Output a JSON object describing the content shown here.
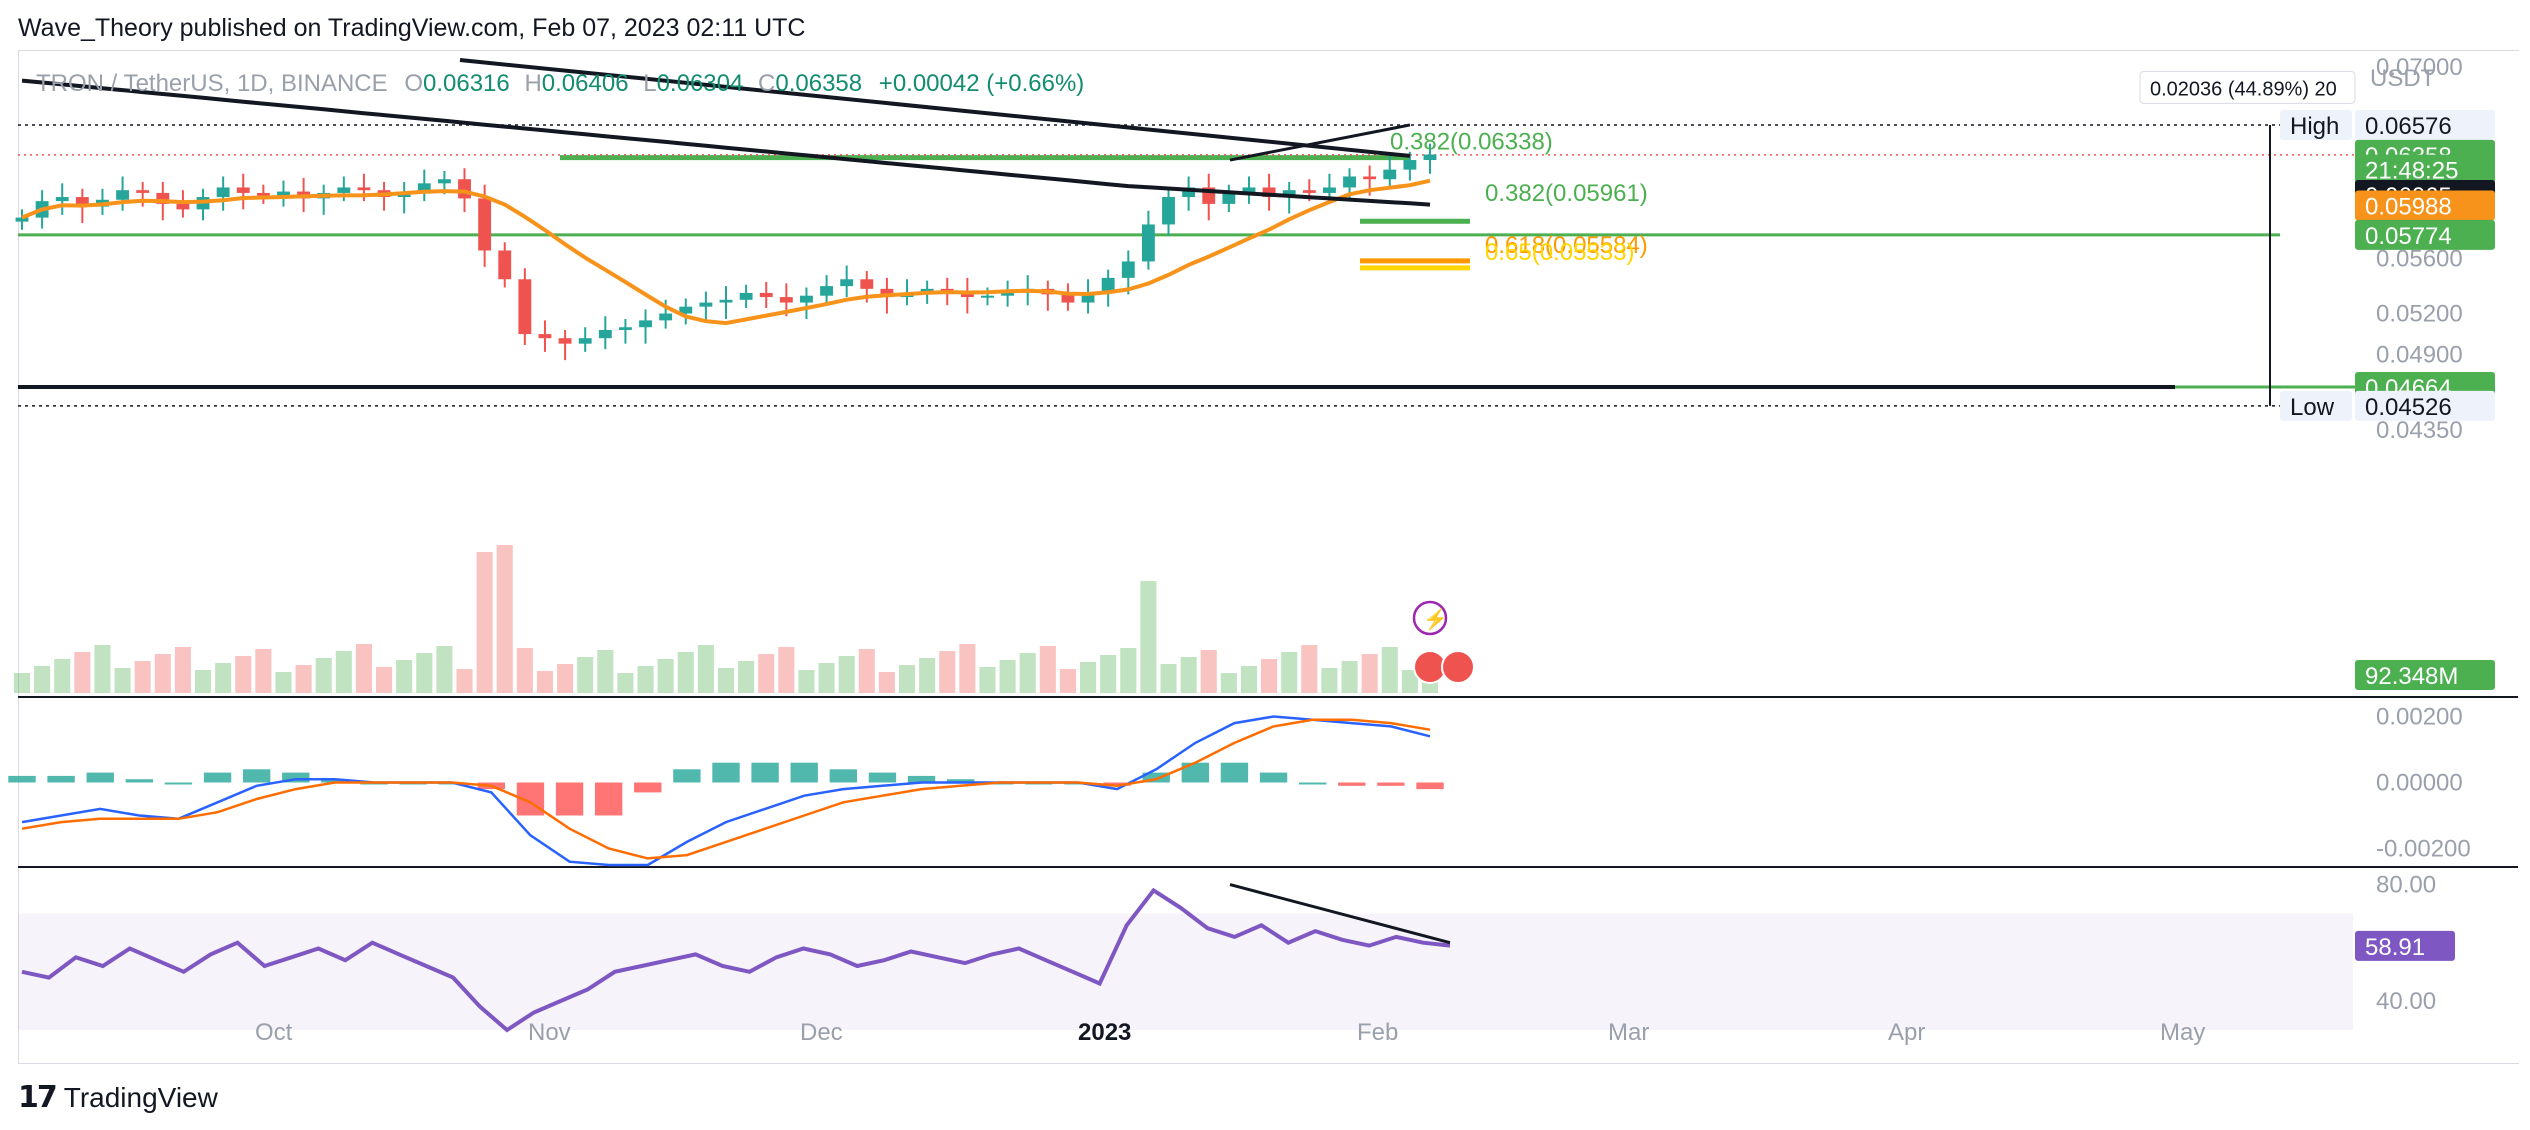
{
  "header": {
    "published": "Wave_Theory published on TradingView.com, Feb 07, 2023 02:11 UTC"
  },
  "legend": {
    "symbol": "TRON / TetherUS, 1D, BINANCE",
    "o_label": "O",
    "o_value": "0.06316",
    "h_label": "H",
    "h_value": "0.06406",
    "l_label": "L",
    "l_value": "0.06304",
    "c_label": "C",
    "c_value": "0.06358",
    "change": "+0.00042 (+0.66%)"
  },
  "footer": {
    "brand": "TradingView"
  },
  "colors": {
    "up": "#26a69a",
    "down": "#ef5350",
    "ema": "#f7931a",
    "ma200": "#131722",
    "fib_green": "#4caf50",
    "fib_orange": "#ff9800",
    "fib_yellow": "#ffd600",
    "macd": "#2962ff",
    "signal": "#ff6d00",
    "rsi": "#7e57c2"
  },
  "chart_data": [
    {
      "type": "candlestick",
      "title": "TRON / TetherUS, 1D, BINANCE",
      "x_ticks": [
        "Oct",
        "Nov",
        "Dec",
        "2023",
        "Feb",
        "Mar",
        "Apr",
        "May"
      ],
      "y_unit": "USDT",
      "y_ticks": [
        "0.07000",
        "0.06576",
        "0.06358",
        "0.05600",
        "0.05200",
        "0.04900",
        "0.04350"
      ],
      "ylim": [
        0.0435,
        0.0705
      ],
      "series_close_approx": [
        0.059,
        0.0602,
        0.0605,
        0.0598,
        0.0603,
        0.061,
        0.0608,
        0.06,
        0.0596,
        0.0605,
        0.0612,
        0.0608,
        0.0606,
        0.0609,
        0.0604,
        0.0608,
        0.0612,
        0.061,
        0.0605,
        0.0608,
        0.0615,
        0.0618,
        0.0604,
        0.0566,
        0.0545,
        0.0505,
        0.0502,
        0.0498,
        0.0502,
        0.0508,
        0.051,
        0.0515,
        0.052,
        0.0525,
        0.0528,
        0.053,
        0.0535,
        0.0532,
        0.0528,
        0.0533,
        0.054,
        0.0545,
        0.0538,
        0.0532,
        0.0535,
        0.0538,
        0.0536,
        0.0532,
        0.0533,
        0.0536,
        0.0538,
        0.0534,
        0.0528,
        0.0535,
        0.0546,
        0.0558,
        0.0585,
        0.0605,
        0.0612,
        0.06,
        0.0608,
        0.0612,
        0.0605,
        0.061,
        0.0608,
        0.0612,
        0.062,
        0.0618,
        0.0625,
        0.0632,
        0.0636
      ],
      "price_tags": [
        {
          "label": "High",
          "value": "0.06576"
        },
        {
          "label": "",
          "value": "0.06358"
        },
        {
          "label": "",
          "value": "21:48:25"
        },
        {
          "label": "",
          "value": "0.06065"
        },
        {
          "label": "",
          "value": "0.05988"
        },
        {
          "label": "",
          "value": "0.05774"
        },
        {
          "label": "",
          "value": "0.04664"
        },
        {
          "label": "Low",
          "value": "0.04526"
        },
        {
          "label": "",
          "value": "92.348M"
        }
      ],
      "annotations": [
        {
          "text": "0.382(0.06338)",
          "y": 0.06338
        },
        {
          "text": "0.382(0.05961)",
          "y": 0.05961
        },
        {
          "text": "0.618(0.05584)",
          "y": 0.05584
        },
        {
          "text": "0.65(0.05533)",
          "y": 0.05533
        }
      ],
      "measure_label": "0.02036 (44.89%) 20",
      "horizontal_levels": [
        0.06576,
        0.06338,
        0.05774,
        0.04664,
        0.04526
      ]
    },
    {
      "type": "line",
      "title": "MACD",
      "y_ticks": [
        "0.00200",
        "0.00000",
        "-0.00200"
      ],
      "ylim": [
        -0.0025,
        0.0025
      ],
      "series": [
        {
          "values": [
            -0.0012,
            -0.001,
            -0.0008,
            -0.001,
            -0.0011,
            -0.0006,
            -0.0001,
            0.0001,
            0.0001,
            0.0,
            0.0,
            0.0,
            -0.0003,
            -0.0016,
            -0.0024,
            -0.003,
            -0.0026,
            -0.0018,
            -0.0012,
            -0.0008,
            -0.0004,
            -0.0002,
            -0.0001,
            0.0,
            0.0,
            0.0,
            0.0,
            0.0,
            -0.0002,
            0.0004,
            0.0012,
            0.0018,
            0.002,
            0.0019,
            0.0018,
            0.0017,
            0.0014
          ]
        },
        {
          "values": [
            -0.0014,
            -0.0012,
            -0.0011,
            -0.0011,
            -0.0011,
            -0.0009,
            -0.0005,
            -0.0002,
            0.0,
            0.0,
            0.0,
            0.0,
            -0.0001,
            -0.0006,
            -0.0014,
            -0.002,
            -0.0023,
            -0.0022,
            -0.0018,
            -0.0014,
            -0.001,
            -0.0006,
            -0.0004,
            -0.0002,
            -0.0001,
            0.0,
            0.0,
            0.0,
            -0.0001,
            0.0001,
            0.0006,
            0.0012,
            0.0017,
            0.0019,
            0.0019,
            0.0018,
            0.0016
          ]
        }
      ]
    },
    {
      "type": "line",
      "title": "RSI",
      "y_ticks": [
        "80.00",
        "58.91",
        "40.00"
      ],
      "ylim": [
        30,
        85
      ],
      "series": [
        {
          "values": [
            50,
            48,
            55,
            52,
            58,
            54,
            50,
            56,
            60,
            52,
            55,
            58,
            54,
            60,
            56,
            52,
            48,
            38,
            30,
            36,
            40,
            44,
            50,
            52,
            54,
            56,
            52,
            50,
            55,
            58,
            56,
            52,
            54,
            57,
            55,
            53,
            56,
            58,
            54,
            50,
            46,
            66,
            78,
            72,
            65,
            62,
            66,
            60,
            64,
            61,
            59,
            62,
            60,
            59
          ]
        }
      ],
      "value_tag": "58.91"
    }
  ]
}
